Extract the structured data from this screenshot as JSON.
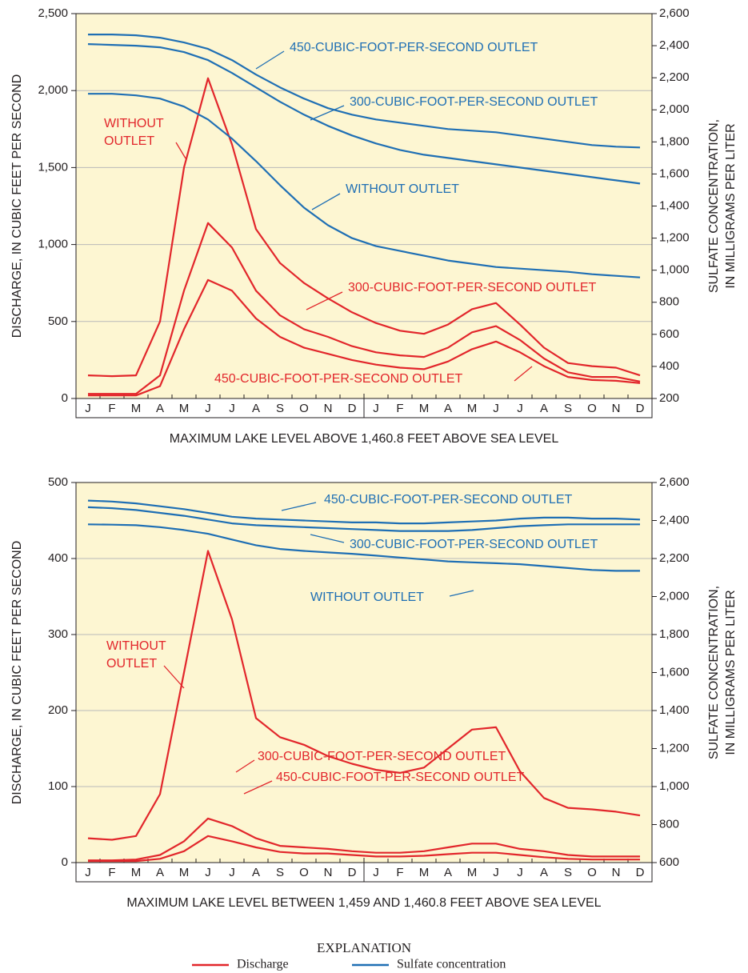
{
  "chart_data": [
    {
      "type": "line",
      "categories": [
        "J",
        "F",
        "M",
        "A",
        "M",
        "J",
        "J",
        "A",
        "S",
        "O",
        "N",
        "D",
        "J",
        "F",
        "M",
        "A",
        "M",
        "J",
        "J",
        "A",
        "S",
        "O",
        "N",
        "D"
      ],
      "y_label": "DISCHARGE, IN CUBIC FEET PER SECOND",
      "y2_label": [
        "SULFATE CONCENTRATION,",
        "IN MILLIGRAMS PER LITER"
      ],
      "x_label": "MAXIMUM LAKE LEVEL ABOVE 1,460.8 FEET ABOVE SEA LEVEL",
      "ylim": [
        0,
        2500
      ],
      "yticks": [
        0,
        500,
        {
          "value": 1000,
          "label": "1,000"
        },
        {
          "value": 1500,
          "label": "1,500"
        },
        {
          "value": 2000,
          "label": "2,000"
        },
        {
          "value": 2500,
          "label": "2,500"
        }
      ],
      "y2lim": [
        200,
        2600
      ],
      "y2ticks": [
        200,
        400,
        600,
        800,
        {
          "value": 1000,
          "label": "1,000"
        },
        {
          "value": 1200,
          "label": "1,200"
        },
        {
          "value": 1400,
          "label": "1,400"
        },
        {
          "value": 1600,
          "label": "1,600"
        },
        {
          "value": 1800,
          "label": "1,800"
        },
        {
          "value": 2000,
          "label": "2,000"
        },
        {
          "value": 2200,
          "label": "2,200"
        },
        {
          "value": 2400,
          "label": "2,400"
        },
        {
          "value": 2600,
          "label": "2,600"
        }
      ],
      "grid": true,
      "series": [
        {
          "color": "#e2262b",
          "values": [
            150,
            145,
            150,
            500,
            1500,
            2080,
            1650,
            1100,
            880,
            750,
            650,
            560,
            490,
            440,
            420,
            480,
            580,
            620,
            480,
            330,
            230,
            210,
            200,
            150
          ]
        },
        {
          "color": "#e2262b",
          "values": [
            30,
            30,
            30,
            150,
            700,
            1140,
            980,
            700,
            540,
            450,
            400,
            340,
            300,
            280,
            270,
            330,
            430,
            470,
            380,
            260,
            170,
            140,
            140,
            110
          ]
        },
        {
          "color": "#e2262b",
          "values": [
            20,
            20,
            20,
            80,
            450,
            770,
            700,
            520,
            400,
            330,
            290,
            250,
            220,
            200,
            190,
            240,
            320,
            370,
            300,
            210,
            140,
            120,
            115,
            100
          ]
        },
        {
          "color": "#1f6fb4",
          "axis": "y2",
          "values": [
            2470,
            2470,
            2465,
            2450,
            2420,
            2380,
            2310,
            2220,
            2140,
            2070,
            2010,
            1970,
            1940,
            1920,
            1900,
            1880,
            1870,
            1860,
            1840,
            1820,
            1800,
            1780,
            1770,
            1765
          ]
        },
        {
          "color": "#1f6fb4",
          "axis": "y2",
          "values": [
            2410,
            2405,
            2400,
            2390,
            2360,
            2310,
            2230,
            2140,
            2050,
            1970,
            1900,
            1840,
            1790,
            1750,
            1720,
            1700,
            1680,
            1660,
            1640,
            1620,
            1600,
            1580,
            1560,
            1540
          ]
        },
        {
          "color": "#1f6fb4",
          "axis": "y2",
          "values": [
            2100,
            2100,
            2090,
            2070,
            2020,
            1940,
            1820,
            1680,
            1530,
            1390,
            1280,
            1200,
            1150,
            1120,
            1090,
            1060,
            1040,
            1020,
            1010,
            1000,
            990,
            975,
            965,
            955
          ]
        }
      ],
      "annotations": [
        {
          "lines": [
            "450-CUBIC-FOOT-PER-SECOND OUTLET"
          ],
          "color": "#1f6fb4"
        },
        {
          "lines": [
            "300-CUBIC-FOOT-PER-SECOND OUTLET"
          ],
          "color": "#1f6fb4"
        },
        {
          "lines": [
            "WITHOUT OUTLET"
          ],
          "color": "#1f6fb4"
        },
        {
          "lines": [
            "WITHOUT",
            "OUTLET"
          ],
          "color": "#e2262b"
        },
        {
          "lines": [
            "300-CUBIC-FOOT-PER-SECOND OUTLET"
          ],
          "color": "#e2262b"
        },
        {
          "lines": [
            "450-CUBIC-FOOT-PER-SECOND OUTLET"
          ],
          "color": "#e2262b"
        }
      ]
    },
    {
      "type": "line",
      "categories": [
        "J",
        "F",
        "M",
        "A",
        "M",
        "J",
        "J",
        "A",
        "S",
        "O",
        "N",
        "D",
        "J",
        "F",
        "M",
        "A",
        "M",
        "J",
        "J",
        "A",
        "S",
        "O",
        "N",
        "D"
      ],
      "y_label": "DISCHARGE, IN CUBIC FEET PER SECOND",
      "y2_label": [
        "SULFATE CONCENTRATION,",
        "IN MILLIGRAMS PER LITER"
      ],
      "x_label": "MAXIMUM LAKE LEVEL BETWEEN 1,459 AND 1,460.8 FEET ABOVE SEA LEVEL",
      "ylim": [
        0,
        500
      ],
      "yticks": [
        0,
        100,
        200,
        300,
        400,
        500
      ],
      "y2lim": [
        600,
        2600
      ],
      "y2ticks": [
        600,
        800,
        {
          "value": 1000,
          "label": "1,000"
        },
        {
          "value": 1200,
          "label": "1,200"
        },
        {
          "value": 1400,
          "label": "1,400"
        },
        {
          "value": 1600,
          "label": "1,600"
        },
        {
          "value": 1800,
          "label": "1,800"
        },
        {
          "value": 2000,
          "label": "2,000"
        },
        {
          "value": 2200,
          "label": "2,200"
        },
        {
          "value": 2400,
          "label": "2,400"
        },
        {
          "value": 2600,
          "label": "2,600"
        }
      ],
      "grid": true,
      "series": [
        {
          "color": "#e2262b",
          "values": [
            32,
            30,
            35,
            90,
            250,
            410,
            320,
            190,
            165,
            155,
            140,
            130,
            122,
            118,
            125,
            150,
            175,
            178,
            120,
            85,
            72,
            70,
            67,
            62
          ]
        },
        {
          "color": "#e2262b",
          "values": [
            3,
            3,
            4,
            10,
            28,
            58,
            48,
            32,
            22,
            20,
            18,
            15,
            13,
            13,
            15,
            20,
            25,
            25,
            18,
            15,
            10,
            8,
            8,
            8
          ]
        },
        {
          "color": "#e2262b",
          "values": [
            2,
            2,
            2,
            5,
            15,
            35,
            28,
            20,
            14,
            12,
            12,
            10,
            8,
            8,
            9,
            11,
            13,
            13,
            10,
            7,
            5,
            4,
            4,
            4
          ]
        },
        {
          "color": "#1f6fb4",
          "axis": "y2",
          "values": [
            2505,
            2500,
            2490,
            2475,
            2460,
            2440,
            2420,
            2410,
            2405,
            2400,
            2395,
            2390,
            2390,
            2385,
            2385,
            2390,
            2395,
            2400,
            2410,
            2415,
            2415,
            2410,
            2410,
            2405
          ]
        },
        {
          "color": "#1f6fb4",
          "axis": "y2",
          "values": [
            2470,
            2465,
            2455,
            2440,
            2425,
            2405,
            2385,
            2375,
            2370,
            2365,
            2360,
            2355,
            2350,
            2345,
            2345,
            2345,
            2350,
            2360,
            2370,
            2375,
            2380,
            2380,
            2380,
            2380
          ]
        },
        {
          "color": "#1f6fb4",
          "axis": "y2",
          "values": [
            2380,
            2378,
            2375,
            2365,
            2350,
            2330,
            2300,
            2270,
            2250,
            2240,
            2232,
            2225,
            2215,
            2205,
            2195,
            2185,
            2180,
            2175,
            2170,
            2160,
            2150,
            2140,
            2135,
            2135
          ]
        }
      ],
      "annotations": [
        {
          "lines": [
            "450-CUBIC-FOOT-PER-SECOND OUTLET"
          ],
          "color": "#1f6fb4"
        },
        {
          "lines": [
            "300-CUBIC-FOOT-PER-SECOND OUTLET"
          ],
          "color": "#1f6fb4"
        },
        {
          "lines": [
            "WITHOUT OUTLET"
          ],
          "color": "#1f6fb4"
        },
        {
          "lines": [
            "WITHOUT",
            "OUTLET"
          ],
          "color": "#e2262b"
        },
        {
          "lines": [
            "300-CUBIC-FOOT-PER-SECOND OUTLET"
          ],
          "color": "#e2262b"
        },
        {
          "lines": [
            "450-CUBIC-FOOT-PER-SECOND OUTLET"
          ],
          "color": "#e2262b"
        }
      ]
    }
  ],
  "explanation": {
    "title": "EXPLANATION",
    "entries": [
      {
        "label": "Discharge",
        "color": "#e2262b"
      },
      {
        "label": "Sulfate concentration",
        "color": "#1f6fb4"
      }
    ]
  }
}
